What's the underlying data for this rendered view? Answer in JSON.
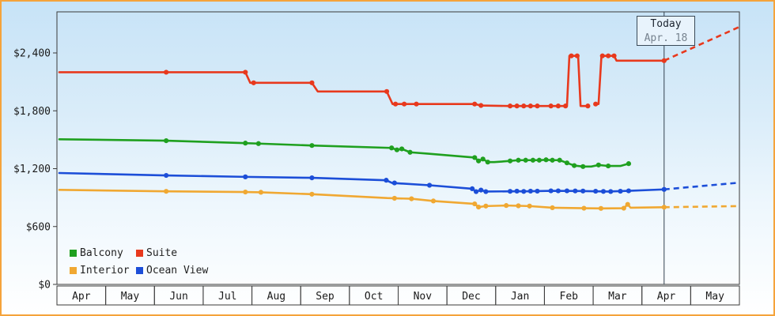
{
  "today_marker": {
    "line1": "Today",
    "line2": "Apr. 18",
    "x_month": 12.45
  },
  "legend": {
    "items": [
      {
        "label": "Balcony"
      },
      {
        "label": "Suite"
      },
      {
        "label": "Interior"
      },
      {
        "label": "Ocean View"
      }
    ]
  },
  "colors": {
    "border": "#f5a33b",
    "bg_top": "#c7e3f7",
    "bg_bottom": "#ffffff",
    "axis": "#3a3a3a",
    "today_line": "#33414e",
    "balcony": "#1fa01f",
    "suite": "#e8391d",
    "interior": "#f0a832",
    "ocean_view": "#1c4ed8"
  },
  "chart_data": {
    "type": "line",
    "title": "",
    "xlabel": "",
    "ylabel": "",
    "legend_position": "bottom-left",
    "grid": false,
    "x_axis": {
      "months": [
        "Apr",
        "May",
        "Jun",
        "Jul",
        "Aug",
        "Sep",
        "Oct",
        "Nov",
        "Dec",
        "Jan",
        "Feb",
        "Mar",
        "Apr",
        "May"
      ],
      "xlim": [
        0,
        14
      ]
    },
    "y_axis": {
      "ticks": [
        {
          "label": "$0",
          "value": 0
        },
        {
          "label": "$600",
          "value": 600
        },
        {
          "label": "$1,200",
          "value": 1200
        },
        {
          "label": "$1,800",
          "value": 1800
        },
        {
          "label": "$2,400",
          "value": 2400
        }
      ],
      "ylim": [
        0,
        2400
      ]
    },
    "series": [
      {
        "name": "Interior",
        "color": "#f0a832",
        "segments": [
          [
            [
              0,
              980
            ],
            [
              2.2,
              965
            ],
            [
              3.83,
              958
            ],
            [
              4.15,
              955
            ],
            [
              5.2,
              935
            ],
            [
              6.75,
              895
            ],
            [
              7.25,
              888
            ],
            [
              7.7,
              865
            ],
            [
              8.55,
              835
            ],
            [
              8.63,
              802
            ],
            [
              8.78,
              812
            ],
            [
              9.2,
              818
            ],
            [
              9.45,
              815
            ],
            [
              9.68,
              812
            ],
            [
              10.15,
              795
            ],
            [
              10.8,
              790
            ],
            [
              11.15,
              788
            ],
            [
              11.62,
              790
            ],
            [
              11.7,
              830
            ],
            [
              11.76,
              795
            ],
            [
              12.45,
              800
            ]
          ]
        ],
        "projection": [
          [
            12.45,
            800
          ],
          [
            14,
            812
          ]
        ],
        "markers": [
          [
            2.2,
            965
          ],
          [
            3.83,
            958
          ],
          [
            4.15,
            955
          ],
          [
            5.2,
            935
          ],
          [
            6.9,
            893
          ],
          [
            7.25,
            888
          ],
          [
            7.7,
            865
          ],
          [
            8.55,
            835
          ],
          [
            8.63,
            802
          ],
          [
            8.78,
            812
          ],
          [
            9.2,
            818
          ],
          [
            9.45,
            815
          ],
          [
            9.68,
            812
          ],
          [
            10.15,
            795
          ],
          [
            10.8,
            790
          ],
          [
            11.15,
            788
          ],
          [
            11.62,
            790
          ],
          [
            11.7,
            830
          ],
          [
            12.45,
            800
          ]
        ]
      },
      {
        "name": "Ocean View",
        "color": "#1c4ed8",
        "segments": [
          [
            [
              0,
              1155
            ],
            [
              2.2,
              1130
            ],
            [
              3.83,
              1115
            ],
            [
              5.2,
              1105
            ],
            [
              6.73,
              1080
            ],
            [
              6.85,
              1052
            ],
            [
              7.62,
              1028
            ],
            [
              8.5,
              992
            ],
            [
              8.58,
              962
            ],
            [
              8.68,
              978
            ],
            [
              8.78,
              963
            ],
            [
              9.28,
              965
            ],
            [
              9.6,
              965
            ],
            [
              10.12,
              970
            ],
            [
              10.7,
              968
            ],
            [
              11.3,
              963
            ],
            [
              11.72,
              970
            ],
            [
              12.45,
              985
            ]
          ]
        ],
        "projection": [
          [
            12.45,
            985
          ],
          [
            14,
            1055
          ]
        ],
        "markers": [
          [
            2.2,
            1130
          ],
          [
            3.83,
            1115
          ],
          [
            5.2,
            1105
          ],
          [
            6.73,
            1080
          ],
          [
            6.9,
            1052
          ],
          [
            7.62,
            1028
          ],
          [
            8.5,
            992
          ],
          [
            8.58,
            962
          ],
          [
            8.68,
            978
          ],
          [
            8.78,
            962
          ],
          [
            9.28,
            965
          ],
          [
            9.42,
            967
          ],
          [
            9.56,
            964
          ],
          [
            9.7,
            967
          ],
          [
            9.84,
            967
          ],
          [
            10.12,
            970
          ],
          [
            10.27,
            970
          ],
          [
            10.45,
            970
          ],
          [
            10.62,
            969
          ],
          [
            10.78,
            968
          ],
          [
            11.04,
            966
          ],
          [
            11.2,
            964
          ],
          [
            11.35,
            963
          ],
          [
            11.55,
            966
          ],
          [
            11.72,
            970
          ],
          [
            12.45,
            985
          ]
        ]
      },
      {
        "name": "Balcony",
        "color": "#1fa01f",
        "segments": [
          [
            [
              0,
              1505
            ],
            [
              2.2,
              1490
            ],
            [
              3.83,
              1465
            ],
            [
              4.1,
              1460
            ],
            [
              5.2,
              1440
            ],
            [
              6.84,
              1415
            ],
            [
              6.95,
              1395
            ],
            [
              7.05,
              1405
            ],
            [
              7.22,
              1370
            ],
            [
              7.6,
              1355
            ],
            [
              8.55,
              1315
            ],
            [
              8.63,
              1280
            ],
            [
              8.72,
              1300
            ],
            [
              8.82,
              1268
            ],
            [
              8.95,
              1268
            ],
            [
              9.28,
              1280
            ],
            [
              9.45,
              1288
            ],
            [
              9.6,
              1288
            ],
            [
              9.75,
              1288
            ],
            [
              9.88,
              1288
            ],
            [
              10.02,
              1292
            ],
            [
              10.15,
              1288
            ],
            [
              10.3,
              1288
            ],
            [
              10.45,
              1260
            ],
            [
              10.6,
              1232
            ],
            [
              10.78,
              1222
            ],
            [
              10.95,
              1222
            ],
            [
              11.1,
              1238
            ],
            [
              11.3,
              1228
            ],
            [
              11.55,
              1228
            ],
            [
              11.72,
              1252
            ]
          ]
        ],
        "markers": [
          [
            2.2,
            1490
          ],
          [
            3.83,
            1465
          ],
          [
            4.1,
            1460
          ],
          [
            5.2,
            1440
          ],
          [
            6.84,
            1415
          ],
          [
            6.95,
            1395
          ],
          [
            7.05,
            1405
          ],
          [
            7.22,
            1370
          ],
          [
            8.55,
            1315
          ],
          [
            8.63,
            1280
          ],
          [
            8.72,
            1300
          ],
          [
            8.82,
            1268
          ],
          [
            9.28,
            1280
          ],
          [
            9.45,
            1288
          ],
          [
            9.6,
            1288
          ],
          [
            9.75,
            1288
          ],
          [
            9.88,
            1288
          ],
          [
            10.02,
            1292
          ],
          [
            10.15,
            1288
          ],
          [
            10.3,
            1288
          ],
          [
            10.45,
            1260
          ],
          [
            10.6,
            1232
          ],
          [
            10.78,
            1222
          ],
          [
            11.1,
            1238
          ],
          [
            11.3,
            1228
          ],
          [
            11.72,
            1252
          ]
        ]
      },
      {
        "name": "Suite",
        "color": "#e8391d",
        "segments": [
          [
            [
              0,
              2200
            ],
            [
              3.83,
              2200
            ],
            [
              3.93,
              2090
            ],
            [
              5.2,
              2090
            ],
            [
              5.32,
              2000
            ],
            [
              6.74,
              2000
            ],
            [
              6.86,
              1870
            ],
            [
              8.55,
              1870
            ],
            [
              8.68,
              1855
            ],
            [
              9.25,
              1850
            ],
            [
              10.45,
              1850
            ],
            [
              10.5,
              2370
            ],
            [
              10.68,
              2370
            ],
            [
              10.73,
              1850
            ],
            [
              10.9,
              1850
            ]
          ],
          [
            [
              11.02,
              1870
            ],
            [
              11.1,
              1870
            ],
            [
              11.16,
              2370
            ],
            [
              11.42,
              2370
            ],
            [
              11.47,
              2320
            ],
            [
              12.45,
              2320
            ]
          ]
        ],
        "projection": [
          [
            12.45,
            2320
          ],
          [
            14,
            2670
          ]
        ],
        "markers": [
          [
            2.2,
            2200
          ],
          [
            3.83,
            2200
          ],
          [
            4.0,
            2090
          ],
          [
            5.2,
            2090
          ],
          [
            6.74,
            2000
          ],
          [
            6.92,
            1870
          ],
          [
            7.1,
            1870
          ],
          [
            7.35,
            1870
          ],
          [
            8.55,
            1870
          ],
          [
            8.68,
            1855
          ],
          [
            9.28,
            1850
          ],
          [
            9.42,
            1850
          ],
          [
            9.56,
            1850
          ],
          [
            9.7,
            1850
          ],
          [
            9.84,
            1850
          ],
          [
            10.12,
            1850
          ],
          [
            10.27,
            1850
          ],
          [
            10.42,
            1850
          ],
          [
            10.54,
            2370
          ],
          [
            10.66,
            2370
          ],
          [
            10.88,
            1850
          ],
          [
            11.04,
            1870
          ],
          [
            11.18,
            2370
          ],
          [
            11.3,
            2370
          ],
          [
            11.42,
            2370
          ],
          [
            12.45,
            2320
          ]
        ]
      }
    ]
  }
}
